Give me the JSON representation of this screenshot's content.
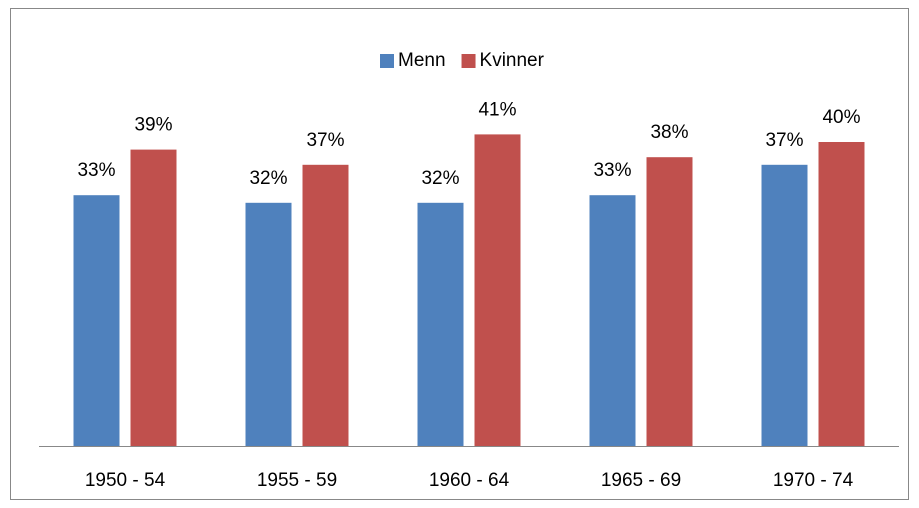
{
  "chart_data": {
    "type": "bar",
    "categories": [
      "1950 - 54",
      "1955 - 59",
      "1960 - 64",
      "1965 - 69",
      "1970 - 74"
    ],
    "series": [
      {
        "name": "Menn",
        "color": "#4f81bd",
        "values": [
          33,
          32,
          32,
          33,
          37
        ],
        "value_labels": [
          "33%",
          "32%",
          "32%",
          "33%",
          "37%"
        ]
      },
      {
        "name": "Kvinner",
        "color": "#c0504d",
        "values": [
          39,
          37,
          41,
          38,
          40
        ],
        "value_labels": [
          "39%",
          "37%",
          "41%",
          "38%",
          "40%"
        ]
      }
    ],
    "legend": "top"
  }
}
